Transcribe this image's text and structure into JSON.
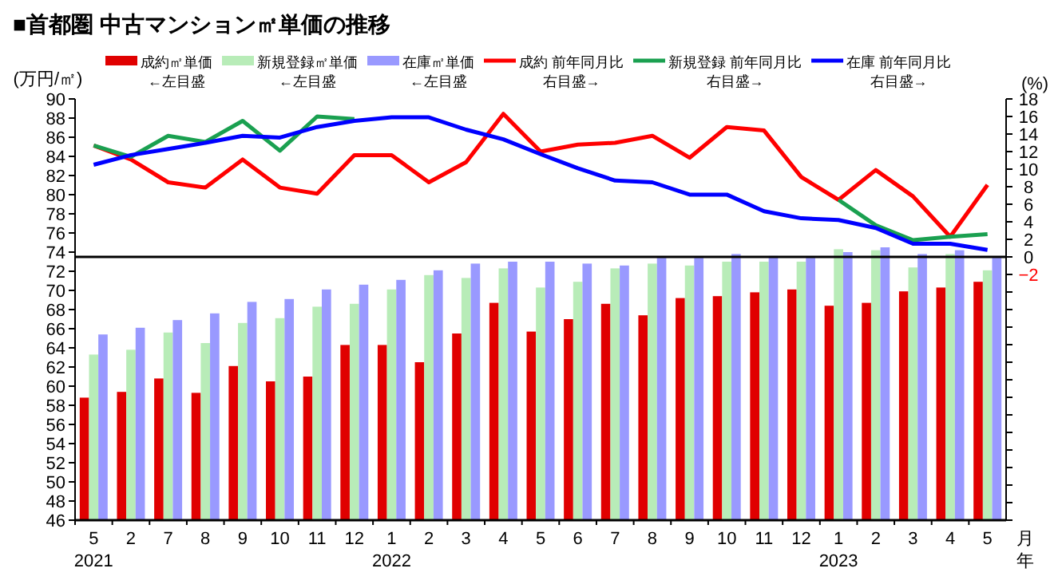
{
  "chart_data": {
    "type": "bar",
    "title": "■首都圏 中古マンション㎡単価の推移",
    "ylabel": "(万円/㎡)",
    "y2label": "(%)",
    "xlabel": "月年",
    "annotations": [
      "←左目盛",
      "←左目盛",
      "←左目盛",
      "右目盛→",
      "右目盛→",
      "右目盛→"
    ],
    "categories": [
      "5\n2021",
      "2",
      "7",
      "8",
      "9",
      "10",
      "11",
      "12",
      "1\n2022",
      "2",
      "3",
      "4",
      "5",
      "6",
      "7",
      "8",
      "9",
      "10",
      "11",
      "12",
      "1\n2023",
      "2",
      "3",
      "4",
      "5"
    ],
    "ylim": [
      46,
      90
    ],
    "yticks": [
      46,
      48,
      50,
      52,
      54,
      56,
      58,
      60,
      62,
      64,
      66,
      68,
      70,
      72,
      74,
      76,
      78,
      80,
      82,
      84,
      86,
      88,
      90
    ],
    "y2lim": [
      -30,
      18
    ],
    "y2ticks": [
      {
        "value": -30,
        "label": null
      },
      {
        "value": -28,
        "label": null
      },
      {
        "value": -26,
        "label": null
      },
      {
        "value": -24,
        "label": null
      },
      {
        "value": -22,
        "label": null
      },
      {
        "value": -20,
        "label": null
      },
      {
        "value": -18,
        "label": null
      },
      {
        "value": -16,
        "label": null
      },
      {
        "value": -14,
        "label": null
      },
      {
        "value": -12,
        "label": null
      },
      {
        "value": -10,
        "label": null
      },
      {
        "value": -8,
        "label": null
      },
      {
        "value": -6,
        "label": null
      },
      {
        "value": -4,
        "label": null
      },
      {
        "value": -2,
        "label": "−2"
      },
      0,
      2,
      4,
      6,
      8,
      10,
      12,
      14,
      16,
      18
    ],
    "legend": "top",
    "ref_lines": [
      {
        "axis": "y2",
        "value": 0,
        "color": "#000000"
      }
    ],
    "series": [
      {
        "name": "成約㎡単価",
        "color": "#e00000",
        "values": [
          58.8,
          59.4,
          60.8,
          59.3,
          62.1,
          60.5,
          61.0,
          64.3,
          64.3,
          62.5,
          65.5,
          68.7,
          65.7,
          67.0,
          68.6,
          67.4,
          69.2,
          69.4,
          69.8,
          70.1,
          68.4,
          68.7,
          69.9,
          70.3,
          70.9
        ]
      },
      {
        "name": "新規登録㎡単価",
        "color": "#b8ecb8",
        "values": [
          63.3,
          63.8,
          65.6,
          64.5,
          66.6,
          67.1,
          68.3,
          68.6,
          70.1,
          71.6,
          71.3,
          72.3,
          70.3,
          70.9,
          72.3,
          72.8,
          72.6,
          73.0,
          73.0,
          73.0,
          74.3,
          74.2,
          72.4,
          73.8,
          72.1
        ]
      },
      {
        "name": "在庫㎡単価",
        "color": "#9999ff",
        "values": [
          65.4,
          66.1,
          66.9,
          67.6,
          68.8,
          69.1,
          70.1,
          70.6,
          71.1,
          72.1,
          72.8,
          73.0,
          73.0,
          72.8,
          72.6,
          73.4,
          73.4,
          73.8,
          73.6,
          73.4,
          74.0,
          74.5,
          73.8,
          74.2,
          73.4
        ]
      },
      {
        "name": "成約 前年同月比",
        "type": "line",
        "axis": "y2",
        "color": "#ff0000",
        "values": [
          12.7,
          11.1,
          8.5,
          7.9,
          11.1,
          7.9,
          7.2,
          11.6,
          11.6,
          8.5,
          10.8,
          16.3,
          12.0,
          12.8,
          13.0,
          13.8,
          11.3,
          14.8,
          14.4,
          9.1,
          6.5,
          9.9,
          6.9,
          2.3,
          8.2
        ]
      },
      {
        "name": "新規登録 前年同月比",
        "type": "line",
        "axis": "y2",
        "color": "#1aa050",
        "values": [
          12.7,
          11.4,
          13.8,
          13.1,
          15.5,
          12.1,
          16.0,
          15.7,
          null,
          null,
          null,
          null,
          null,
          null,
          null,
          null,
          null,
          null,
          null,
          null,
          6.5,
          3.6,
          1.9,
          2.3,
          2.6
        ]
      },
      {
        "name": "在庫 前年同月比",
        "type": "line",
        "axis": "y2",
        "color": "#0000ff",
        "values": [
          10.5,
          11.6,
          12.3,
          13.0,
          13.8,
          13.6,
          14.8,
          15.5,
          15.9,
          15.9,
          14.5,
          13.4,
          11.7,
          10.1,
          8.7,
          8.5,
          7.1,
          7.1,
          5.2,
          4.4,
          4.2,
          3.3,
          1.5,
          1.5,
          0.8
        ]
      }
    ]
  }
}
